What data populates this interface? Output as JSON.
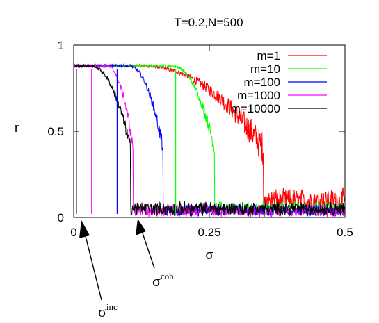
{
  "chart_data": {
    "type": "line",
    "title": "T=0.2,N=500",
    "xlabel": "σ",
    "ylabel": "r",
    "xlim": [
      0,
      0.5
    ],
    "ylim": [
      0,
      1
    ],
    "x_ticks": [
      "0",
      "0.25",
      "0.5"
    ],
    "y_ticks": [
      "0",
      "0.5",
      "1"
    ],
    "legend_position": "top-right",
    "grid": false,
    "series": [
      {
        "name": "m=1",
        "color": "#ff0000",
        "r_high": 0.88,
        "drop_start": 0.12,
        "transition": 0.35,
        "r_low": 0.08,
        "noise_low": 0.06
      },
      {
        "name": "m=10",
        "color": "#00ff00",
        "r_high": 0.88,
        "drop_start": 0.18,
        "transition": 0.26,
        "r_low": 0.04,
        "noise_low": 0.035
      },
      {
        "name": "m=100",
        "color": "#0000ff",
        "r_high": 0.88,
        "drop_start": 0.1,
        "transition": 0.165,
        "r_low": 0.03,
        "noise_low": 0.03
      },
      {
        "name": "m=1000",
        "color": "#ff00ff",
        "r_high": 0.88,
        "drop_start": 0.06,
        "transition": 0.11,
        "r_low": 0.03,
        "noise_low": 0.03
      },
      {
        "name": "m=10000",
        "color": "#000000",
        "r_high": 0.88,
        "drop_start": 0.03,
        "transition": 0.105,
        "r_low": 0.04,
        "noise_low": 0.035
      }
    ],
    "vertical_drops": [
      {
        "series": "m=10",
        "x": 0.188
      },
      {
        "series": "m=100",
        "x": 0.08
      },
      {
        "series": "m=1000",
        "x": 0.033
      },
      {
        "series": "m=10000",
        "x": 0.005
      }
    ],
    "annotations": [
      {
        "label": "σ",
        "superscript": "coh",
        "points_to_x": 0.115
      },
      {
        "label": "σ",
        "superscript": "inc",
        "points_to_x": 0.01
      }
    ]
  }
}
